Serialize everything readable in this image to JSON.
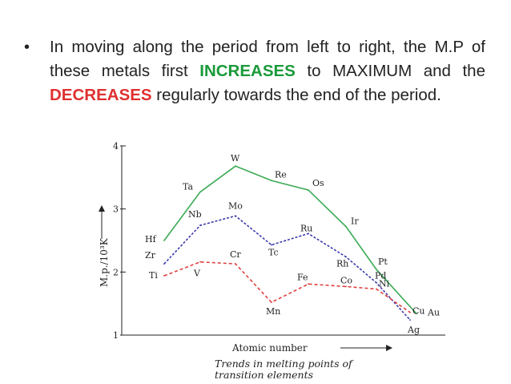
{
  "slide": {
    "bullet": {
      "marker": "•",
      "part1": "In moving along the period from left to right, the M.P of these metals first ",
      "keyword1": "INCREASES",
      "part2": " to MAXIMUM and the ",
      "keyword2": "DECREASES",
      "part3": " regularly towards the end of the period."
    },
    "colors": {
      "text": "#222222",
      "increases": "#1a9a3a",
      "decreases": "#e03030"
    }
  },
  "chart_data": {
    "type": "line",
    "title": "",
    "caption": [
      "Trends in melting points of",
      "transition elements"
    ],
    "xlabel": "Atomic number",
    "ylabel": "M.p./10³K",
    "ylim": [
      1,
      4
    ],
    "yticks": [
      "1",
      "2",
      "3",
      "4"
    ],
    "x": [
      1,
      2,
      3,
      4,
      5,
      6,
      7,
      8,
      9
    ],
    "series": [
      {
        "color": "#3aaa55",
        "dash": "",
        "labels": [
          "Hf",
          "Ta",
          "W",
          "Re",
          "Os",
          "Ir",
          "Pt",
          "Au"
        ],
        "x": [
          1,
          2,
          3,
          4,
          5,
          6,
          7,
          8.2
        ],
        "values": [
          2.5,
          3.27,
          3.68,
          3.45,
          3.3,
          2.72,
          2.04,
          1.34
        ]
      },
      {
        "color": "#3a3aaa",
        "dash": "3,2",
        "labels": [
          "Zr",
          "Nb",
          "Mo",
          "Tc",
          "Ru",
          "Rh",
          "Pd",
          "Ag"
        ],
        "x": [
          1,
          2,
          3,
          4,
          5,
          6,
          7,
          8
        ],
        "values": [
          2.13,
          2.74,
          2.89,
          2.43,
          2.61,
          2.24,
          1.83,
          1.24
        ]
      },
      {
        "color": "#e04040",
        "dash": "4,3",
        "labels": [
          "Ti",
          "V",
          "Cr",
          "Mn",
          "Fe",
          "Co",
          "Ni",
          "Cu"
        ],
        "x": [
          1,
          2,
          3,
          4,
          5,
          6,
          7,
          8
        ],
        "values": [
          1.94,
          2.16,
          2.13,
          1.52,
          1.81,
          1.77,
          1.73,
          1.36
        ]
      }
    ]
  }
}
